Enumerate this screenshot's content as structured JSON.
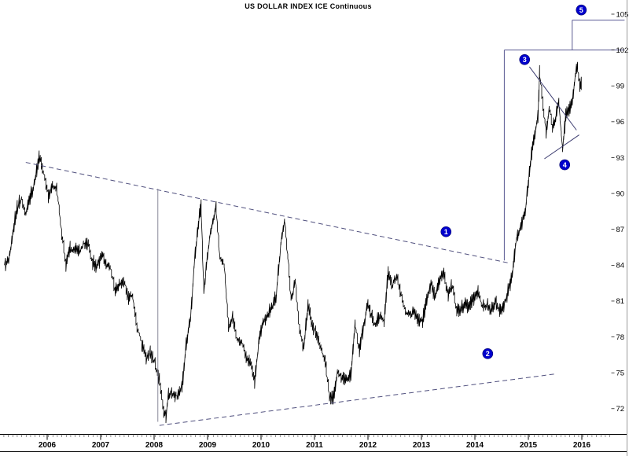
{
  "chart_data": {
    "type": "line",
    "title": "US DOLLAR INDEX ICE Continuous",
    "x_axis": {
      "ticks": [
        2006,
        2007,
        2008,
        2009,
        2010,
        2011,
        2012,
        2013,
        2014,
        2015,
        2016
      ],
      "minor": "monthly",
      "position": "bottom"
    },
    "y_axis": {
      "ticks": [
        105,
        102,
        99,
        96,
        93,
        90,
        87,
        84,
        81,
        78,
        75,
        72
      ],
      "position": "right"
    },
    "x_range": [
      2005.19,
      2016.6
    ],
    "y_range": [
      70.2,
      105.8
    ],
    "grid": false,
    "legend": "none",
    "price_color": "#000000",
    "series": [
      {
        "name": "US Dollar Index ICE Continuous",
        "color": "#000000",
        "points": [
          [
            2005.2,
            84.0
          ],
          [
            2005.28,
            84.6
          ],
          [
            2005.36,
            86.4
          ],
          [
            2005.44,
            88.6
          ],
          [
            2005.52,
            89.3
          ],
          [
            2005.6,
            87.8
          ],
          [
            2005.68,
            89.0
          ],
          [
            2005.76,
            90.2
          ],
          [
            2005.85,
            92.5
          ],
          [
            2005.93,
            91.2
          ],
          [
            2006.02,
            89.6
          ],
          [
            2006.1,
            90.3
          ],
          [
            2006.18,
            89.9
          ],
          [
            2006.27,
            86.3
          ],
          [
            2006.35,
            84.2
          ],
          [
            2006.43,
            85.5
          ],
          [
            2006.52,
            85.3
          ],
          [
            2006.6,
            85.0
          ],
          [
            2006.68,
            85.7
          ],
          [
            2006.77,
            85.8
          ],
          [
            2006.85,
            83.8
          ],
          [
            2006.93,
            83.4
          ],
          [
            2007.02,
            84.8
          ],
          [
            2007.1,
            83.9
          ],
          [
            2007.18,
            83.4
          ],
          [
            2007.27,
            81.5
          ],
          [
            2007.35,
            82.2
          ],
          [
            2007.43,
            82.3
          ],
          [
            2007.52,
            80.8
          ],
          [
            2007.6,
            80.9
          ],
          [
            2007.68,
            78.6
          ],
          [
            2007.77,
            77.0
          ],
          [
            2007.85,
            75.9
          ],
          [
            2007.93,
            76.6
          ],
          [
            2008.02,
            75.5
          ],
          [
            2008.1,
            73.8
          ],
          [
            2008.18,
            71.3
          ],
          [
            2008.22,
            70.9
          ],
          [
            2008.27,
            72.7
          ],
          [
            2008.35,
            72.9
          ],
          [
            2008.43,
            72.4
          ],
          [
            2008.52,
            73.2
          ],
          [
            2008.6,
            76.8
          ],
          [
            2008.68,
            79.0
          ],
          [
            2008.77,
            84.6
          ],
          [
            2008.85,
            87.6
          ],
          [
            2008.88,
            88.3
          ],
          [
            2008.93,
            81.4
          ],
          [
            2009.02,
            85.4
          ],
          [
            2009.1,
            87.8
          ],
          [
            2009.16,
            89.2
          ],
          [
            2009.23,
            85.2
          ],
          [
            2009.31,
            84.6
          ],
          [
            2009.39,
            79.5
          ],
          [
            2009.47,
            80.2
          ],
          [
            2009.55,
            78.4
          ],
          [
            2009.64,
            78.2
          ],
          [
            2009.72,
            76.8
          ],
          [
            2009.8,
            76.4
          ],
          [
            2009.88,
            74.9
          ],
          [
            2009.96,
            77.9
          ],
          [
            2010.04,
            79.5
          ],
          [
            2010.12,
            80.4
          ],
          [
            2010.2,
            81.1
          ],
          [
            2010.28,
            81.9
          ],
          [
            2010.37,
            86.4
          ],
          [
            2010.44,
            88.2
          ],
          [
            2010.5,
            85.0
          ],
          [
            2010.56,
            81.6
          ],
          [
            2010.64,
            83.1
          ],
          [
            2010.72,
            78.9
          ],
          [
            2010.8,
            77.2
          ],
          [
            2010.88,
            81.1
          ],
          [
            2010.96,
            79.1
          ],
          [
            2011.04,
            77.8
          ],
          [
            2011.12,
            77.0
          ],
          [
            2011.2,
            76.0
          ],
          [
            2011.28,
            73.4
          ],
          [
            2011.35,
            72.9
          ],
          [
            2011.43,
            74.6
          ],
          [
            2011.52,
            74.1
          ],
          [
            2011.6,
            73.9
          ],
          [
            2011.68,
            74.2
          ],
          [
            2011.76,
            78.5
          ],
          [
            2011.84,
            76.4
          ],
          [
            2011.92,
            78.4
          ],
          [
            2012.0,
            80.2
          ],
          [
            2012.06,
            79.3
          ],
          [
            2012.14,
            78.8
          ],
          [
            2012.22,
            79.1
          ],
          [
            2012.3,
            78.9
          ],
          [
            2012.38,
            82.9
          ],
          [
            2012.46,
            81.7
          ],
          [
            2012.54,
            82.7
          ],
          [
            2012.62,
            81.3
          ],
          [
            2012.7,
            79.9
          ],
          [
            2012.78,
            80.0
          ],
          [
            2012.86,
            80.2
          ],
          [
            2012.94,
            79.8
          ],
          [
            2013.02,
            79.3
          ],
          [
            2013.1,
            81.8
          ],
          [
            2013.18,
            82.9
          ],
          [
            2013.26,
            81.8
          ],
          [
            2013.34,
            83.1
          ],
          [
            2013.42,
            83.2
          ],
          [
            2013.5,
            81.6
          ],
          [
            2013.58,
            82.1
          ],
          [
            2013.66,
            80.3
          ],
          [
            2013.74,
            80.2
          ],
          [
            2013.82,
            80.7
          ],
          [
            2013.9,
            80.1
          ],
          [
            2013.98,
            80.6
          ],
          [
            2014.06,
            81.2
          ],
          [
            2014.14,
            79.8
          ],
          [
            2014.22,
            80.1
          ],
          [
            2014.3,
            79.6
          ],
          [
            2014.38,
            80.4
          ],
          [
            2014.46,
            79.9
          ],
          [
            2014.54,
            80.2
          ],
          [
            2014.62,
            81.4
          ],
          [
            2014.7,
            82.7
          ],
          [
            2014.78,
            85.8
          ],
          [
            2014.86,
            86.9
          ],
          [
            2014.94,
            88.4
          ],
          [
            2015.0,
            90.3
          ],
          [
            2015.06,
            92.8
          ],
          [
            2015.12,
            94.8
          ],
          [
            2015.18,
            96.5
          ],
          [
            2015.21,
            100.2
          ],
          [
            2015.27,
            97.5
          ],
          [
            2015.33,
            94.9
          ],
          [
            2015.39,
            96.9
          ],
          [
            2015.45,
            95.3
          ],
          [
            2015.51,
            95.9
          ],
          [
            2015.57,
            97.2
          ],
          [
            2015.64,
            93.1
          ],
          [
            2015.7,
            95.9
          ],
          [
            2015.76,
            96.4
          ],
          [
            2015.82,
            96.9
          ],
          [
            2015.88,
            99.3
          ],
          [
            2015.92,
            100.1
          ],
          [
            2015.96,
            98.4
          ],
          [
            2015.99,
            98.7
          ]
        ]
      }
    ],
    "overlays": {
      "trendlines": [
        {
          "name": "descending-trendline",
          "from": [
            2005.6,
            92.6
          ],
          "to": [
            2014.62,
            84.2
          ],
          "style": "dashed",
          "color": "#50507e"
        },
        {
          "name": "ascending-trendline",
          "from": [
            2008.1,
            70.6
          ],
          "to": [
            2015.5,
            74.9
          ],
          "style": "dashed",
          "color": "#50507e"
        },
        {
          "name": "measure-vertical-2008",
          "from": [
            2008.07,
            90.4
          ],
          "to": [
            2008.07,
            70.9
          ],
          "style": "solid",
          "color": "#8a8a9a"
        },
        {
          "name": "breakout-vertical",
          "from": [
            2014.55,
            102.0
          ],
          "to": [
            2014.55,
            84.4
          ],
          "style": "solid",
          "color": "#5a5a92"
        },
        {
          "name": "breakout-level-102",
          "from": [
            2014.55,
            102.0
          ],
          "to": [
            2016.8,
            102.0
          ],
          "style": "solid",
          "color": "#5a5a92"
        },
        {
          "name": "target-level-104-5",
          "from": [
            2015.82,
            104.5
          ],
          "to": [
            2016.8,
            104.5
          ],
          "style": "solid",
          "color": "#5a5a92"
        },
        {
          "name": "target-vertical",
          "from": [
            2015.82,
            104.5
          ],
          "to": [
            2015.82,
            102.0
          ],
          "style": "solid",
          "color": "#5a5a92"
        },
        {
          "name": "pennant-upper",
          "from": [
            2015.02,
            100.6
          ],
          "to": [
            2015.9,
            95.3
          ],
          "style": "solid",
          "color": "#3c3c70"
        },
        {
          "name": "pennant-lower",
          "from": [
            2015.3,
            92.9
          ],
          "to": [
            2015.95,
            94.9
          ],
          "style": "solid",
          "color": "#3c3c70"
        }
      ],
      "markers": [
        {
          "label": "1",
          "x": 2013.46,
          "y": 86.8
        },
        {
          "label": "2",
          "x": 2014.24,
          "y": 76.6
        },
        {
          "label": "3",
          "x": 2014.93,
          "y": 101.2
        },
        {
          "label": "4",
          "x": 2015.68,
          "y": 92.4
        },
        {
          "label": "5",
          "x": 2015.99,
          "y": 105.35
        }
      ],
      "marker_style": {
        "fill": "#0000cd",
        "stroke": "#00006a",
        "text_color": "#ffffff"
      }
    }
  }
}
